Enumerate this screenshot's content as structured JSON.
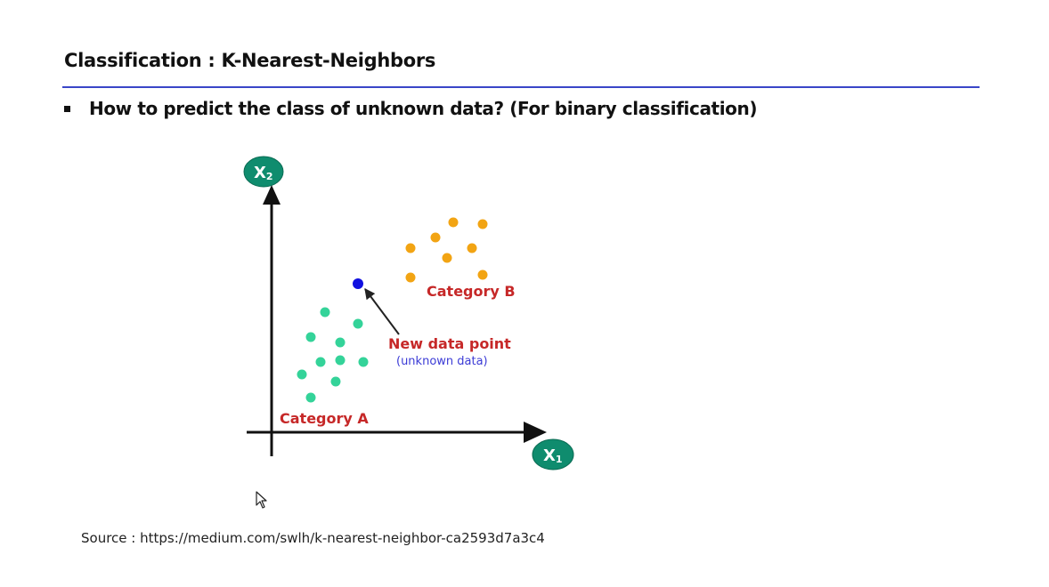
{
  "slide": {
    "title": "Classification : K-Nearest-Neighbors",
    "bullet": "How to predict the class of unknown data? (For binary classification)",
    "source": "Source : https://medium.com/swlh/k-nearest-neighbor-ca2593d7a3c4"
  },
  "diagram": {
    "axis_x": {
      "label": "X",
      "subscript": "1"
    },
    "axis_y": {
      "label": "X",
      "subscript": "2"
    },
    "category_a": {
      "label": "Category A",
      "color": "#34d399"
    },
    "category_b": {
      "label": "Category B",
      "color": "#f2a413"
    },
    "new_point": {
      "label": "New data point",
      "sublabel": "(unknown data)",
      "color": "#1010e0"
    },
    "label_color": "#c62828",
    "sublabel_color": "#3b3bd6",
    "badge_color": "#0f8c6e",
    "cursor_icon": "arrow-cursor-icon"
  }
}
